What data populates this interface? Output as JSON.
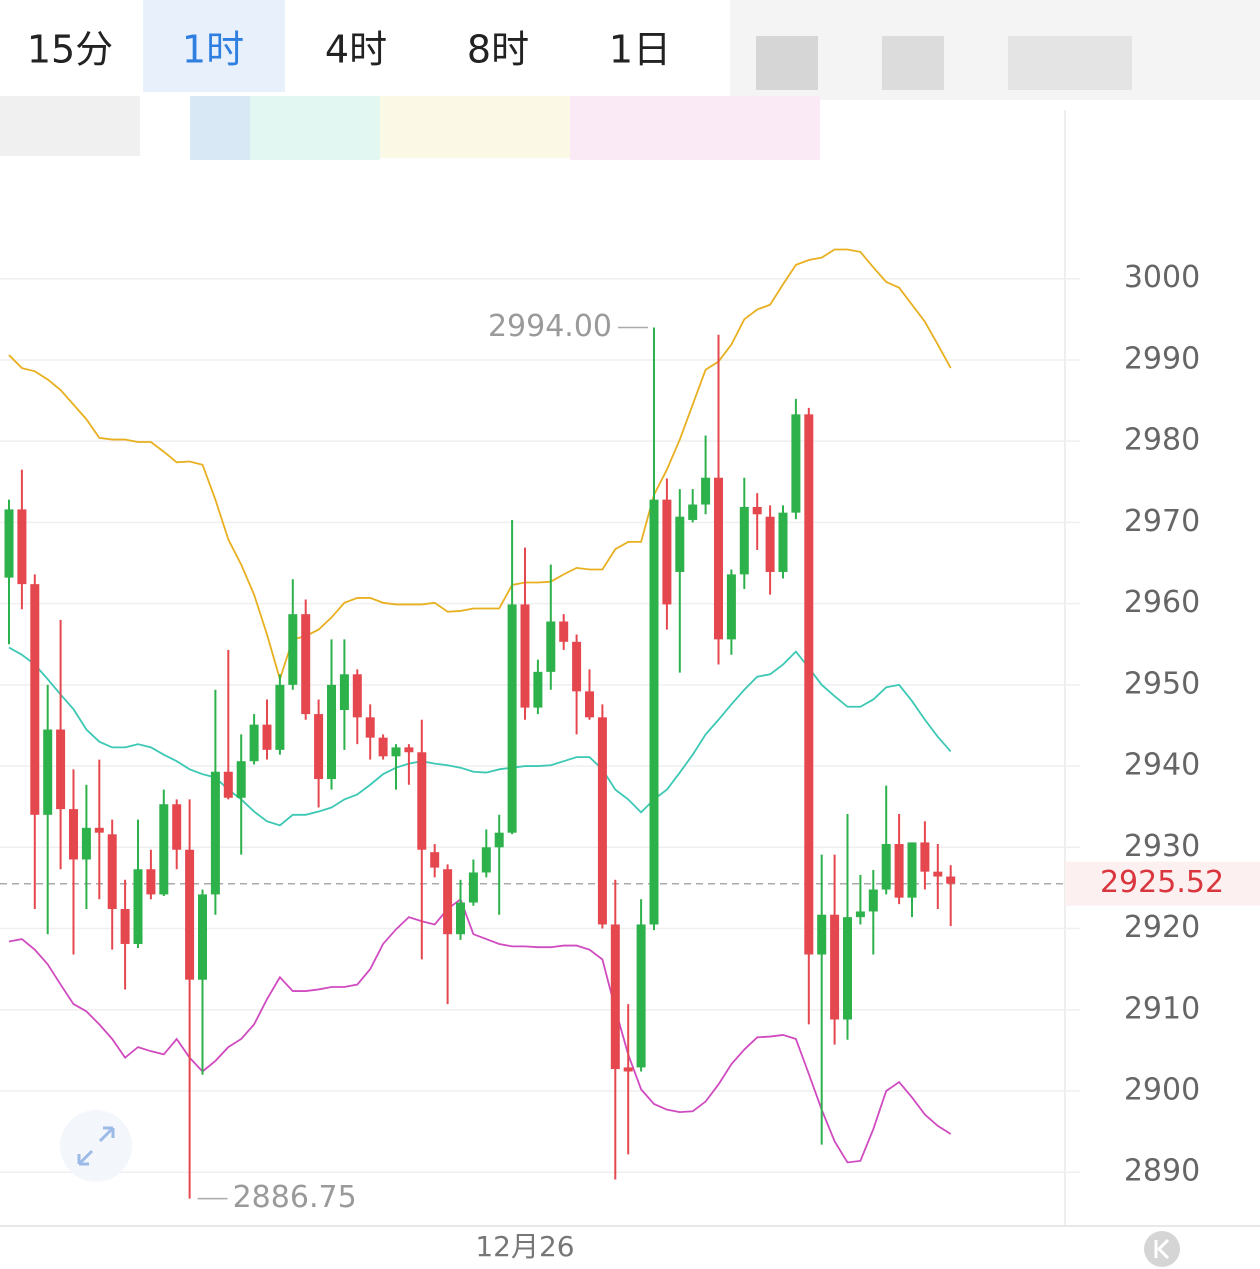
{
  "tabs": [
    "15分",
    "1时",
    "4时",
    "8时",
    "1日"
  ],
  "active_tab": 1,
  "chart_data": {
    "type": "candlestick",
    "categories": [
      null,
      null,
      null,
      null,
      null,
      null,
      null,
      null,
      null,
      null,
      null,
      null,
      null,
      null,
      null,
      null,
      null,
      null,
      null,
      null,
      null,
      null,
      null,
      null,
      null,
      null,
      null,
      null,
      null,
      null,
      null,
      null,
      null,
      null,
      null,
      null,
      null,
      null,
      null,
      null,
      "12月26",
      null,
      null,
      null,
      null,
      null,
      null,
      null,
      null,
      null,
      null,
      null,
      null,
      null,
      null,
      null,
      null,
      null,
      null,
      null,
      null,
      null,
      null,
      null,
      null,
      null,
      null,
      null,
      null,
      null,
      null,
      null,
      null,
      null
    ],
    "open": [
      2963.2,
      2971.6,
      2962.4,
      2934.0,
      2944.5,
      2934.7,
      2928.5,
      2932.4,
      2931.6,
      2922.4,
      2918.1,
      2927.3,
      2924.2,
      2935.3,
      2929.7,
      2913.7,
      2924.2,
      2939.3,
      2936.1,
      2940.6,
      2945.1,
      2942.0,
      2950.0,
      2958.7,
      2946.4,
      2938.4,
      2946.9,
      2951.3,
      2946.0,
      2943.5,
      2941.2,
      2942.3,
      2941.7,
      2929.4,
      2927.3,
      2919.3,
      2923.2,
      2926.9,
      2930.0,
      2931.8,
      2959.9,
      2947.2,
      2951.6,
      2957.8,
      2955.3,
      2949.2,
      2946.0,
      2920.5,
      2902.9,
      2902.9,
      2920.5,
      2972.8,
      2963.9,
      2970.3,
      2972.2,
      2975.5,
      2955.6,
      2963.6,
      2971.9,
      2970.7,
      2963.9,
      2971.2,
      2983.3,
      2916.8,
      2921.7,
      2908.8,
      2921.4,
      2922.1,
      2924.8,
      2930.4,
      2923.8,
      2930.6,
      2927.0,
      2926.4
    ],
    "high": [
      2972.8,
      2976.5,
      2963.6,
      2950.0,
      2958.0,
      2939.6,
      2937.7,
      2940.8,
      2933.4,
      2926.0,
      2933.4,
      2929.7,
      2937.1,
      2935.9,
      2935.9,
      2924.8,
      2949.4,
      2954.3,
      2943.9,
      2946.4,
      2948.2,
      2951.3,
      2963.0,
      2960.5,
      2948.2,
      2955.6,
      2955.6,
      2951.9,
      2947.6,
      2943.9,
      2942.7,
      2942.7,
      2945.7,
      2930.4,
      2927.9,
      2926.0,
      2928.5,
      2932.2,
      2934.0,
      2970.3,
      2966.9,
      2953.1,
      2964.8,
      2958.7,
      2956.2,
      2951.9,
      2947.6,
      2926.0,
      2910.7,
      2923.6,
      2994.0,
      2975.4,
      2974.1,
      2974.1,
      2980.7,
      2993.1,
      2964.2,
      2975.5,
      2973.6,
      2972.1,
      2972.1,
      2985.2,
      2984.1,
      2929.1,
      2929.1,
      2934.1,
      2926.6,
      2927.2,
      2937.6,
      2934.1,
      2930.6,
      2933.2,
      2930.4,
      2927.8
    ],
    "low": [
      2955.0,
      2959.3,
      2922.4,
      2919.3,
      2927.3,
      2916.8,
      2922.4,
      2923.6,
      2917.4,
      2912.5,
      2917.6,
      2923.6,
      2924.0,
      2927.3,
      2886.75,
      2902.0,
      2921.7,
      2935.9,
      2929.1,
      2940.2,
      2940.8,
      2941.4,
      2949.4,
      2945.7,
      2934.9,
      2937.1,
      2942.0,
      2942.7,
      2940.8,
      2940.8,
      2937.1,
      2937.7,
      2916.2,
      2926.3,
      2910.7,
      2918.6,
      2922.8,
      2926.3,
      2921.7,
      2931.6,
      2945.7,
      2946.4,
      2949.4,
      2954.3,
      2943.9,
      2945.7,
      2920.0,
      2889.1,
      2892.2,
      2902.4,
      2919.8,
      2956.8,
      2951.5,
      2970.0,
      2971.0,
      2952.5,
      2953.7,
      2961.8,
      2966.6,
      2961.1,
      2963.1,
      2970.4,
      2908.2,
      2893.4,
      2905.7,
      2906.3,
      2920.5,
      2916.8,
      2924.2,
      2923.0,
      2921.4,
      2924.8,
      2922.4,
      2920.3
    ],
    "close": [
      2971.6,
      2962.4,
      2934.0,
      2944.5,
      2934.7,
      2928.5,
      2932.4,
      2931.8,
      2922.4,
      2918.1,
      2927.3,
      2924.2,
      2935.3,
      2929.7,
      2913.7,
      2924.2,
      2939.3,
      2936.1,
      2940.6,
      2945.1,
      2942.0,
      2950.0,
      2958.7,
      2946.4,
      2938.4,
      2950.0,
      2951.3,
      2946.0,
      2943.5,
      2941.2,
      2942.3,
      2941.7,
      2929.7,
      2927.5,
      2919.3,
      2923.2,
      2926.9,
      2930.0,
      2931.8,
      2959.9,
      2947.2,
      2951.6,
      2957.8,
      2955.3,
      2949.2,
      2946.0,
      2920.5,
      2902.7,
      2902.4,
      2920.5,
      2972.8,
      2959.9,
      2970.7,
      2972.2,
      2975.5,
      2955.6,
      2963.6,
      2971.9,
      2971.0,
      2963.9,
      2971.2,
      2983.3,
      2916.8,
      2921.7,
      2908.8,
      2921.4,
      2922.1,
      2924.8,
      2930.4,
      2923.8,
      2930.6,
      2927.0,
      2926.4,
      2925.52
    ],
    "up_color": "#2db14a",
    "down_color": "#e5474f",
    "lines": [
      {
        "color": "#e8b020",
        "values": [
          2990.6,
          2989.0,
          2988.6,
          2987.6,
          2986.3,
          2984.5,
          2982.7,
          2980.4,
          2980.2,
          2980.2,
          2979.9,
          2979.9,
          2978.7,
          2977.4,
          2977.5,
          2977.1,
          2972.8,
          2967.9,
          2964.8,
          2961.1,
          2956.2,
          2950.7,
          2955.6,
          2956.0,
          2956.8,
          2958.3,
          2960.1,
          2960.7,
          2960.7,
          2960.1,
          2959.9,
          2959.9,
          2959.9,
          2960.1,
          2959.0,
          2959.1,
          2959.4,
          2959.4,
          2959.4,
          2962.3,
          2962.6,
          2962.6,
          2962.7,
          2963.6,
          2964.4,
          2964.2,
          2964.2,
          2966.7,
          2967.6,
          2967.6,
          2973.4,
          2976.5,
          2980.2,
          2984.5,
          2988.8,
          2989.8,
          2991.9,
          2995.0,
          2996.2,
          2996.8,
          2999.3,
          3001.7,
          3002.3,
          3002.6,
          3003.6,
          3003.6,
          3003.3,
          3001.4,
          2999.6,
          2998.9,
          2996.8,
          2994.7,
          2991.9,
          2989.0
        ]
      },
      {
        "color": "#3cc8b4",
        "values": [
          2954.6,
          2953.7,
          2952.5,
          2950.7,
          2948.8,
          2947.0,
          2944.5,
          2943.0,
          2942.3,
          2942.3,
          2942.7,
          2942.3,
          2941.4,
          2940.6,
          2939.6,
          2939.0,
          2938.6,
          2937.1,
          2935.9,
          2934.4,
          2933.2,
          2932.7,
          2934.0,
          2934.0,
          2934.4,
          2934.9,
          2935.9,
          2936.5,
          2937.7,
          2939.0,
          2939.8,
          2940.3,
          2940.6,
          2940.3,
          2940.1,
          2939.8,
          2939.3,
          2939.2,
          2939.6,
          2939.8,
          2940.0,
          2940.0,
          2940.1,
          2940.6,
          2941.1,
          2941.1,
          2939.6,
          2937.1,
          2935.9,
          2934.3,
          2935.9,
          2937.1,
          2939.2,
          2941.4,
          2943.9,
          2945.7,
          2947.6,
          2949.4,
          2951.0,
          2951.3,
          2952.5,
          2954.1,
          2952.1,
          2950.0,
          2948.6,
          2947.3,
          2947.3,
          2948.2,
          2949.7,
          2950.0,
          2948.0,
          2945.7,
          2943.6,
          2941.8
        ]
      },
      {
        "color": "#d04bc0",
        "values": [
          2918.4,
          2918.7,
          2917.4,
          2915.6,
          2913.1,
          2910.7,
          2909.8,
          2908.2,
          2906.4,
          2904.1,
          2905.4,
          2904.9,
          2904.5,
          2906.4,
          2904.1,
          2902.4,
          2903.7,
          2905.4,
          2906.4,
          2908.2,
          2911.3,
          2914.0,
          2912.3,
          2912.3,
          2912.5,
          2912.8,
          2912.8,
          2913.1,
          2915.0,
          2918.1,
          2919.9,
          2921.4,
          2920.9,
          2920.5,
          2922.4,
          2923.6,
          2919.3,
          2918.7,
          2918.1,
          2917.8,
          2917.8,
          2917.7,
          2917.7,
          2917.9,
          2917.9,
          2917.4,
          2916.2,
          2910.1,
          2904.5,
          2900.2,
          2898.4,
          2897.7,
          2897.4,
          2897.5,
          2898.7,
          2900.8,
          2903.3,
          2905.1,
          2906.6,
          2906.7,
          2906.9,
          2906.4,
          2902.1,
          2897.7,
          2893.8,
          2891.2,
          2891.4,
          2895.3,
          2900.0,
          2901.1,
          2899.2,
          2897.1,
          2895.7,
          2894.7
        ]
      }
    ],
    "ylim": [
      2883.5,
      3014
    ],
    "yticks": [
      2890,
      2900,
      2910,
      2920,
      2930,
      2940,
      2950,
      2960,
      2970,
      2980,
      2990,
      3000
    ],
    "grid": true,
    "last_price": {
      "value": 2925.52,
      "label": "2925.52"
    },
    "annotations": [
      {
        "index": 50,
        "value": 2994,
        "label": "2994.00"
      },
      {
        "index": 14,
        "value": 2886.75,
        "label": "2886.75"
      }
    ]
  }
}
